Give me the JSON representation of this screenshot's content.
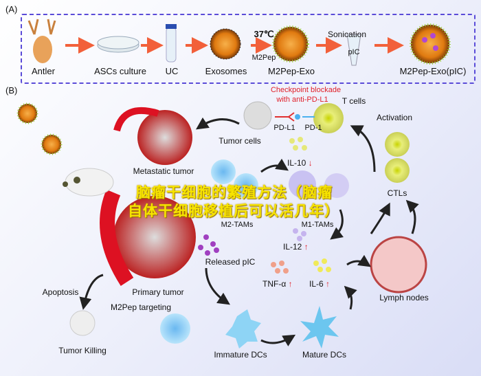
{
  "panel_a": {
    "label": "(A)",
    "steps": [
      "Antler",
      "ASCs culture",
      "UC",
      "Exosomes",
      "M2Pep-Exo",
      "M2Pep-Exo(pIC)"
    ],
    "temperature": "37℃",
    "peptide": "M2Pep",
    "sonication": "Sonication",
    "cargo": "pIC"
  },
  "panel_b": {
    "label": "(B)",
    "checkpoint_line1": "Checkpoint blockade",
    "checkpoint_line2": "with anti-PD-L1",
    "t_cells": "T cells",
    "pd_l1": "PD-L1",
    "pd_1": "PD-1",
    "tumor_cells": "Tumor cells",
    "activation": "Activation",
    "il10": "IL-10",
    "il10_arrow": "↓",
    "metastatic_tumor": "Metastatic tumor",
    "ctls": "CTLs",
    "m2_tams": "M2-TAMs",
    "m1_tams": "M1-TAMs",
    "il12": "IL-12",
    "released_pic": "Released pIC",
    "tnf": "TNF-α",
    "il6": "IL-6",
    "up_arrow": "↑",
    "lymph_nodes": "Lymph nodes",
    "apoptosis": "Apoptosis",
    "primary_tumor": "Primary tumor",
    "m2pep_targeting": "M2Pep targeting",
    "tumor_killing": "Tumor Killing",
    "immature_dcs": "Immature DCs",
    "mature_dcs": "Mature DCs"
  },
  "watermark": {
    "line1": "脑瘤干细胞的繁殖方法（脑瘤",
    "line2": "自体干细胞移植后可以活几年）"
  },
  "colors": {
    "frame": "#5a4bd8",
    "arrow_orange": "#f2603a",
    "alert_red": "#e0202a",
    "watermark": "#f7e400"
  }
}
